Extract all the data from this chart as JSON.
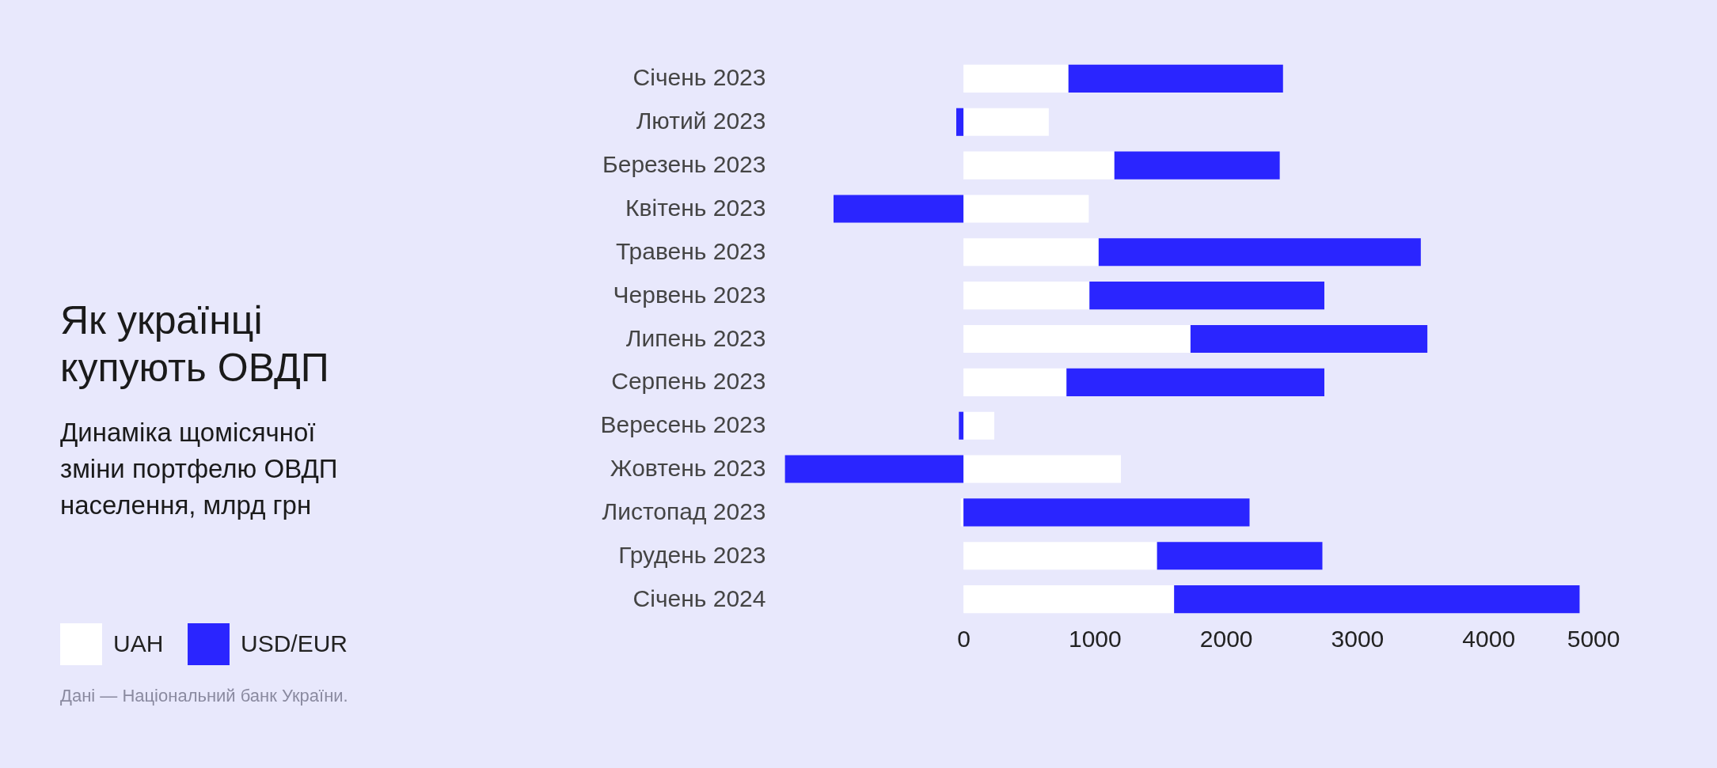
{
  "chart_data": {
    "type": "bar",
    "orientation": "horizontal",
    "stacked": true,
    "title": "Як українці купують ОВДП",
    "subtitle": "Динаміка щомісячної зміни портфелю ОВДП населення, млрд грн",
    "categories": [
      "Січень 2023",
      "Лютий 2023",
      "Березень 2023",
      "Квітень 2023",
      "Травень 2023",
      "Червень 2023",
      "Липень 2023",
      "Серпень 2023",
      "Вересень 2023",
      "Жовтень 2023",
      "Листопад 2023",
      "Грудень 2023",
      "Січень 2024"
    ],
    "series": [
      {
        "name": "UAH",
        "color": "#ffffff",
        "values": [
          800,
          650,
          1150,
          955,
          1030,
          960,
          1730,
          785,
          235,
          1200,
          -20,
          1475,
          1605
        ]
      },
      {
        "name": "USD/EUR",
        "color": "#2a25ff",
        "values": [
          1635,
          -55,
          1260,
          -990,
          2455,
          1790,
          1805,
          1965,
          -35,
          -1360,
          2180,
          1260,
          3090
        ]
      }
    ],
    "xlim": [
      -1400,
      5000
    ],
    "xticks": [
      0,
      1000,
      2000,
      3000,
      4000,
      5000
    ],
    "grid": false,
    "legend": "bottom left",
    "annotations": [
      "Дані — Національний банк України."
    ]
  }
}
